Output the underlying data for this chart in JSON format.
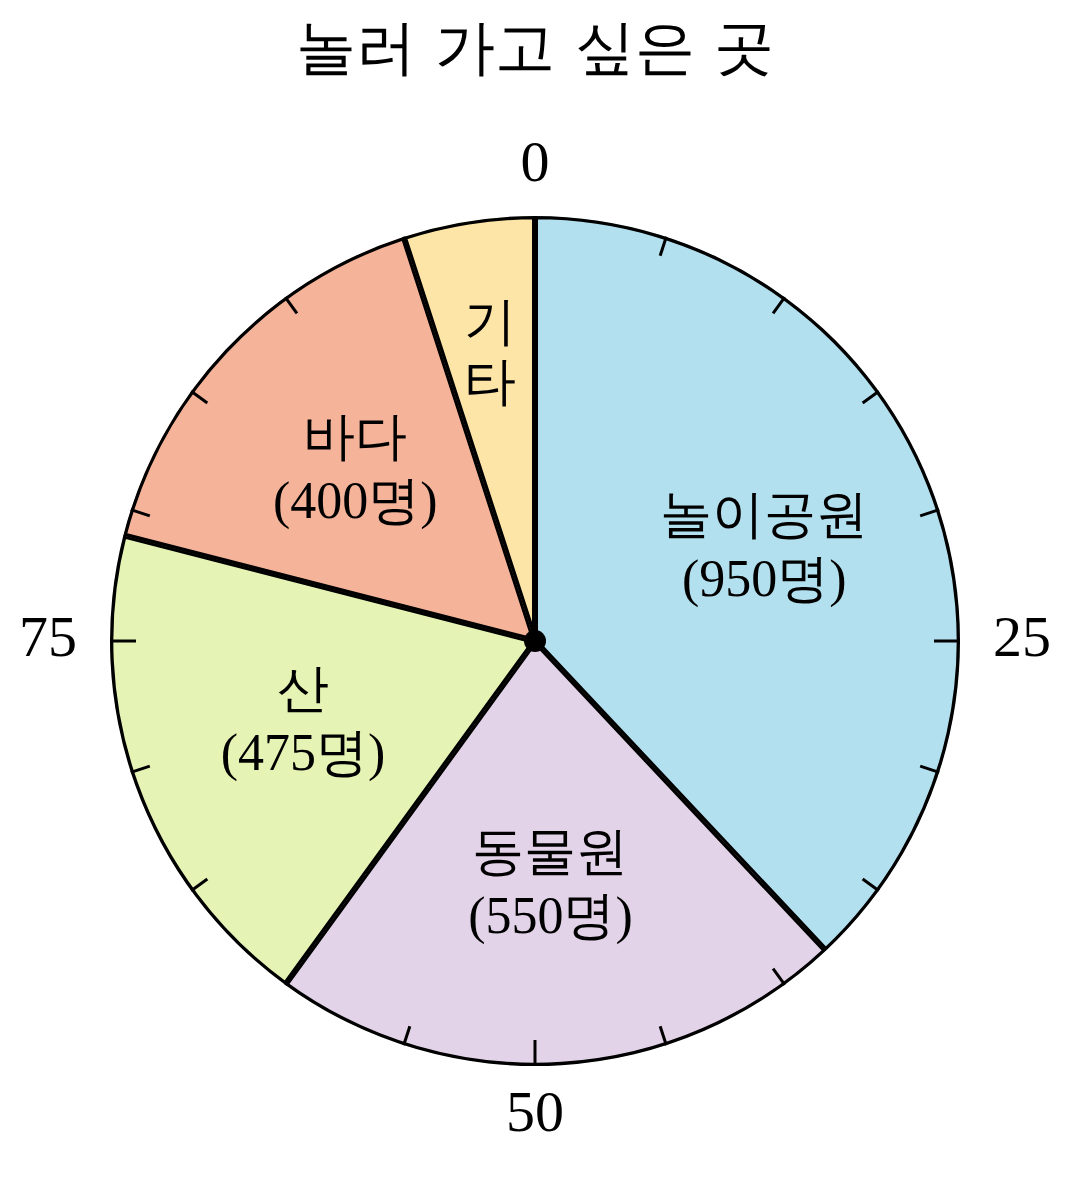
{
  "chart_data": {
    "type": "pie",
    "title": "놀러 가고 싶은 곳",
    "categories": [
      "놀이공원",
      "동물원",
      "산",
      "바다",
      "기타"
    ],
    "values": [
      950,
      550,
      475,
      400,
      125
    ],
    "value_labels": [
      "(950명)",
      "(550명)",
      "(475명)",
      "(400명)",
      null
    ],
    "colors": [
      "#b3e0ee",
      "#e3d3e8",
      "#e5f4b4",
      "#f5b49a",
      "#fde5a8"
    ],
    "annotations": [
      "0",
      "25",
      "50",
      "75"
    ]
  }
}
